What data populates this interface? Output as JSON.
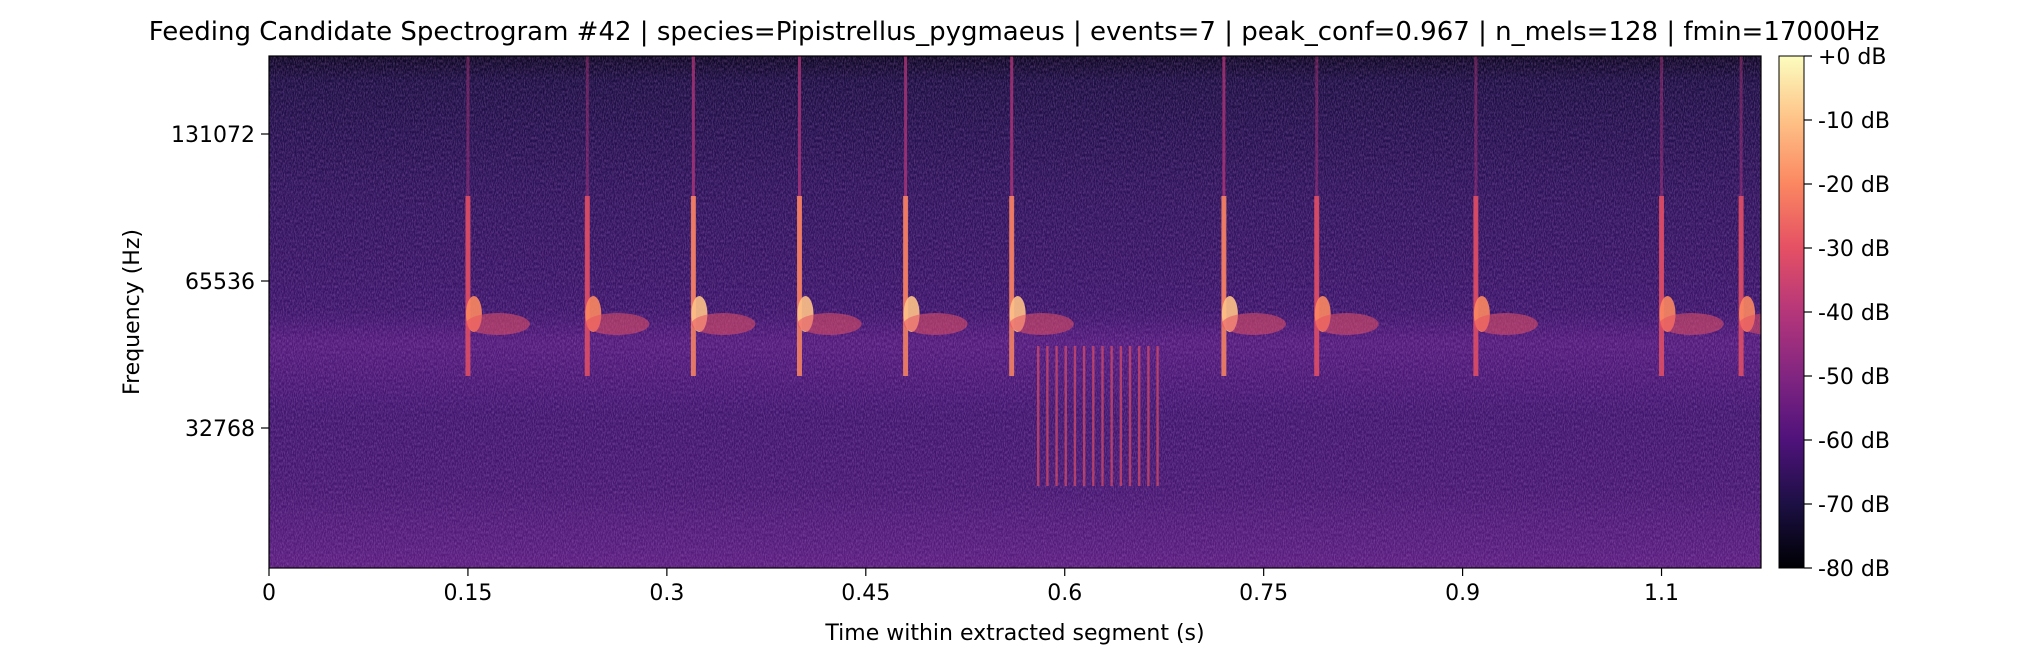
{
  "chart_data": {
    "type": "heatmap",
    "title": "Feeding Candidate Spectrogram #42 | species=Pipistrellus_pygmaeus | events=7 | peak_conf=0.967 | n_mels=128 | fmin=17000Hz",
    "xlabel": "Time within extracted segment (s)",
    "ylabel": "Frequency (Hz)",
    "x_range": [
      0,
      1.125
    ],
    "x_ticks": [
      0,
      0.15,
      0.3,
      0.45,
      0.6,
      0.75,
      0.9,
      1.05
    ],
    "x_tick_labels": [
      "0",
      "0.15",
      "0.3",
      "0.45",
      "0.6",
      "0.75",
      "0.9",
      "1.1"
    ],
    "y_scale": "mel",
    "y_tick_values": [
      131072,
      65536,
      32768
    ],
    "y_tick_labels": [
      "131072",
      "65536",
      "32768"
    ],
    "colormap": "magma",
    "colorbar": {
      "range": [
        -80,
        0
      ],
      "tick_values": [
        0,
        -10,
        -20,
        -30,
        -40,
        -50,
        -60,
        -70,
        -80
      ],
      "tick_labels": [
        "+0 dB",
        "-10 dB",
        "-20 dB",
        "-30 dB",
        "-40 dB",
        "-50 dB",
        "-60 dB",
        "-70 dB",
        "-80 dB"
      ]
    },
    "call_times_s": [
      0.15,
      0.24,
      0.32,
      0.4,
      0.48,
      0.56,
      0.72,
      0.79,
      0.91,
      1.05,
      1.11
    ],
    "buzz_interval_s": [
      0.58,
      0.67
    ],
    "background_level_db": -60
  }
}
